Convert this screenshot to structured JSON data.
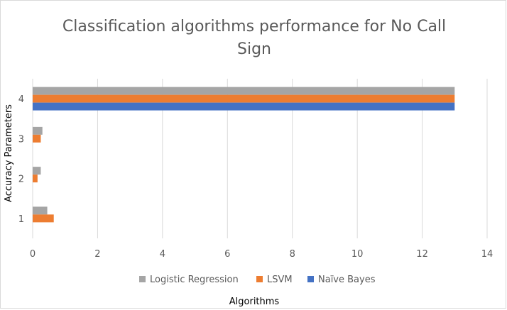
{
  "chart_data": {
    "type": "bar",
    "orientation": "horizontal",
    "title": "Classification algorithms performance for No Call Sign",
    "title_lines": [
      "Classification algorithms performance  for No Call",
      "Sign"
    ],
    "xlabel": "Algorithms",
    "ylabel": "Accuracy Parameters",
    "categories": [
      "1",
      "2",
      "3",
      "4"
    ],
    "xlim": [
      0,
      14
    ],
    "x_ticks": [
      "0",
      "2",
      "4",
      "6",
      "8",
      "10",
      "12",
      "14"
    ],
    "grid": "vertical",
    "legend_position": "bottom",
    "series": [
      {
        "name": "Logistic Regression",
        "color": "#a5a5a5",
        "values": [
          0.45,
          0.25,
          0.3,
          13
        ]
      },
      {
        "name": "LSVM",
        "color": "#ed7d31",
        "values": [
          0.65,
          0.15,
          0.25,
          13
        ]
      },
      {
        "name": "Naïve Bayes",
        "color": "#4472c4",
        "values": [
          0,
          0,
          0,
          13
        ]
      }
    ]
  }
}
